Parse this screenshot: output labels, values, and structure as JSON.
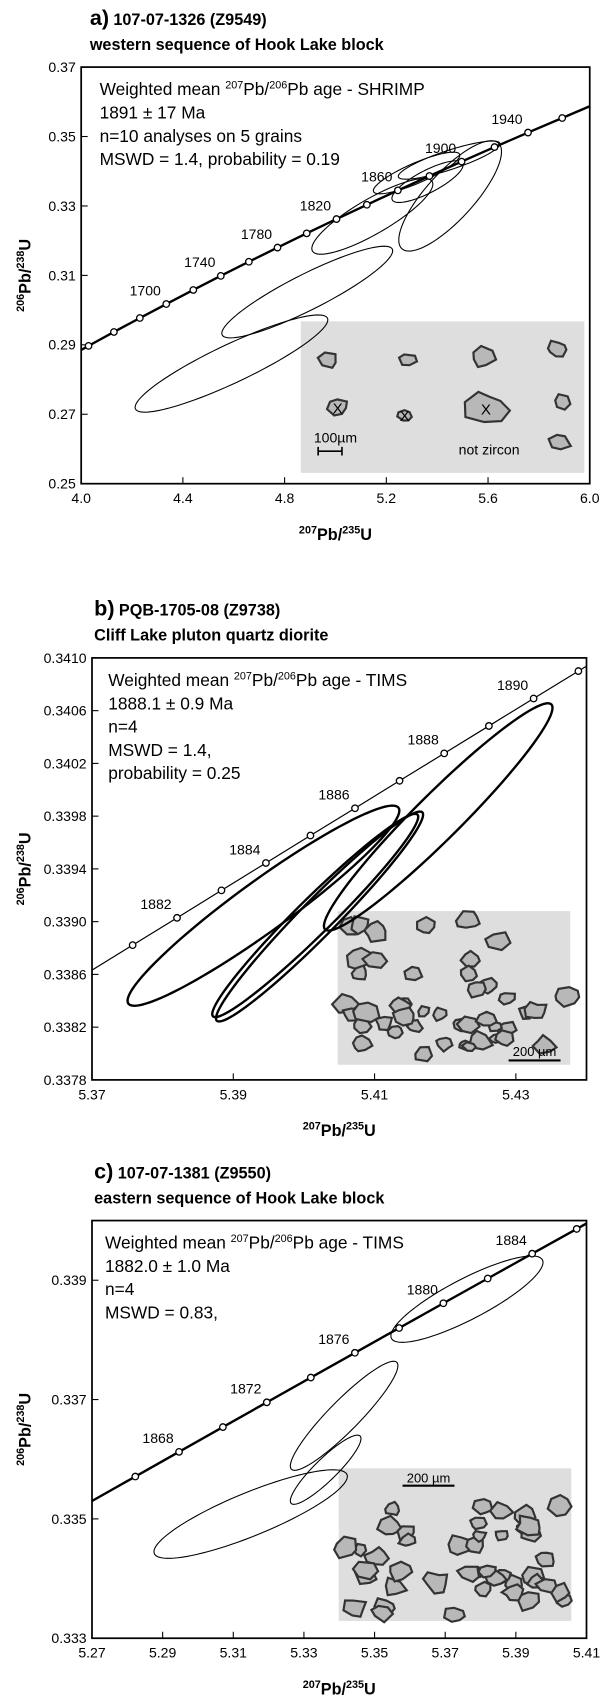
{
  "chart_data": [
    {
      "type": "concordia",
      "label": "a)",
      "title": "107-07-1326  (Z9549)",
      "subtitle": "western sequence of Hook Lake block",
      "annotation": [
        [
          "Weighted mean ",
          "207",
          "Pb/",
          "206",
          "Pb age - SHRIMP"
        ],
        [
          "1891 ± 17 Ma"
        ],
        [
          "n=10 analyses on 5 grains"
        ],
        [
          "MSWD = 1.4, probability = 0.19"
        ]
      ],
      "xlabel": [
        "207",
        "Pb/",
        "235",
        "U"
      ],
      "ylabel": [
        "206",
        "Pb/",
        "238",
        "U"
      ],
      "xlim": [
        4,
        6
      ],
      "xticks": [
        {
          "value": 4,
          "label": "4.0"
        },
        4.4,
        4.8,
        5.2,
        5.6,
        {
          "value": 6,
          "label": "6.0"
        }
      ],
      "ylim": [
        0.25,
        0.37
      ],
      "yticks": [
        0.25,
        0.27,
        0.29,
        0.31,
        0.33,
        0.35,
        0.37
      ],
      "color": "#000000",
      "concordia": {
        "x": [
          4.029,
          4.1287,
          4.2307,
          4.3347,
          4.4409,
          4.5491,
          4.6595,
          4.7721,
          4.8869,
          5.004,
          5.1235,
          5.2453,
          5.3695,
          5.4962,
          5.6255,
          5.7573,
          5.8917
        ],
        "y": [
          0.28969,
          0.2937,
          0.29772,
          0.30175,
          0.3058,
          0.30986,
          0.31393,
          0.31801,
          0.32211,
          0.32622,
          0.33034,
          0.33448,
          0.33863,
          0.34278,
          0.34696,
          0.35114,
          0.35534
        ],
        "labels": [
          null,
          null,
          null,
          1700,
          null,
          1740,
          null,
          1780,
          null,
          1820,
          null,
          1860,
          null,
          1900,
          null,
          1940,
          null
        ]
      },
      "ellipses": {
        "x": [
          4.591,
          4.889,
          5.145,
          5.451,
          5.319,
          5.447,
          5.362
        ],
        "y": [
          0.2846,
          0.3052,
          0.327,
          0.3329,
          0.3395,
          0.3432,
          0.337
        ],
        "sx": [
          0.379,
          0.336,
          0.238,
          0.202,
          0.17,
          0.2,
          0.14
        ],
        "sy": [
          0.014,
          0.0132,
          0.0109,
          0.0159,
          0.006,
          0.0055,
          0.006
        ],
        "rho": [
          0.9,
          0.9,
          0.85,
          0.8,
          0.85,
          0.85,
          0.8
        ]
      },
      "inset": [
        "X",
        "X",
        "X",
        "100µm",
        "not zircon"
      ]
    },
    {
      "type": "concordia",
      "label": "b)",
      "title": "PQB-1705-08  (Z9738)",
      "subtitle": "Cliff Lake pluton quartz diorite",
      "annotation": [
        [
          "Weighted mean ",
          "207",
          "Pb/",
          "206",
          "Pb age - TIMS"
        ],
        [
          "1888.1 ± 0.9 Ma"
        ],
        [
          "n=4"
        ],
        [
          "MSWD = 1.4,"
        ],
        [
          "probability = 0.25"
        ]
      ],
      "xlabel": [
        "207",
        "Pb/",
        "235",
        "U"
      ],
      "ylabel": [
        "206",
        "Pb/",
        "238",
        "U"
      ],
      "xlim": [
        5.37,
        5.44
      ],
      "xticks": [
        5.37,
        5.39,
        5.41,
        5.43
      ],
      "ylim": [
        0.3378,
        0.341
      ],
      "yticks": [
        0.3378,
        0.3382,
        0.3386,
        {
          "value": 0.339,
          "label": "0.3390"
        },
        0.3394,
        0.3398,
        0.3402,
        0.3406,
        {
          "value": 0.341,
          "label": "0.3410"
        }
      ],
      "color": "#000000",
      "concordia": {
        "x": [
          5.375753,
          5.382036,
          5.388325,
          5.394619,
          5.40092,
          5.407227,
          5.41354,
          5.419859,
          5.426183,
          5.432514,
          5.438851
        ],
        "y": [
          0.338822,
          0.339029,
          0.339237,
          0.339445,
          0.339653,
          0.33986,
          0.340068,
          0.340276,
          0.340484,
          0.340692,
          0.3409
        ],
        "labels": [
          null,
          1882,
          null,
          1884,
          null,
          1886,
          null,
          1888,
          null,
          1890,
          null
        ]
      },
      "ellipses": {
        "x": [
          5.39427,
          5.4016,
          5.40221,
          5.41901
        ],
        "y": [
          0.339121,
          0.339047,
          0.339039,
          0.339794
        ],
        "sx": [
          0.01924,
          0.01458,
          0.01466,
          0.01618
        ],
        "sy": [
          0.000759,
          0.000771,
          0.000796,
          0.000862
        ],
        "rho": [
          0.95,
          0.97,
          0.97,
          0.96
        ]
      },
      "inset": [
        "200 µm"
      ]
    },
    {
      "type": "concordia",
      "label": "c)",
      "title": "107-07-1381  (Z9550)",
      "subtitle": "eastern sequence of Hook Lake block",
      "annotation": [
        [
          "Weighted mean ",
          "207",
          "Pb/",
          "206",
          "Pb age - TIMS"
        ],
        [
          "1882.0 ± 1.0  Ma"
        ],
        [
          "n=4"
        ],
        [
          "MSWD = 0.83,"
        ]
      ],
      "xlabel": [
        "207",
        "Pb/",
        "235",
        "U"
      ],
      "ylabel": [
        "206",
        "Pb/",
        "238",
        "U"
      ],
      "xlim": [
        5.27,
        5.41
      ],
      "xticks": [
        5.27,
        5.29,
        5.31,
        5.33,
        5.35,
        5.37,
        5.39,
        5.41
      ],
      "ylim": [
        0.333,
        0.34
      ],
      "yticks": [
        0.333,
        0.335,
        0.337,
        0.339
      ],
      "color": "#000000",
      "concordia": {
        "x": [
          5.282261,
          5.294646,
          5.307056,
          5.319491,
          5.33195,
          5.344434,
          5.356943,
          5.369477,
          5.382036,
          5.394619,
          5.407227
        ],
        "y": [
          0.33571,
          0.336124,
          0.336539,
          0.336954,
          0.337369,
          0.337784,
          0.338199,
          0.338614,
          0.339029,
          0.339445,
          0.33986
        ],
        "labels": [
          null,
          1868,
          null,
          1872,
          null,
          1876,
          null,
          1880,
          null,
          1884,
          null
        ]
      },
      "ellipses": {
        "x": [
          5.31492,
          5.33615,
          5.34138,
          5.37615
        ],
        "y": [
          0.335081,
          0.335824,
          0.336728,
          0.338683
        ],
        "sx": [
          0.02738,
          0.01,
          0.01523,
          0.02154
        ],
        "sy": [
          0.000742,
          0.00058,
          0.000914,
          0.000724
        ],
        "rho": [
          0.85,
          0.9,
          0.92,
          0.85
        ]
      },
      "inset": [
        "200 µm"
      ]
    }
  ]
}
